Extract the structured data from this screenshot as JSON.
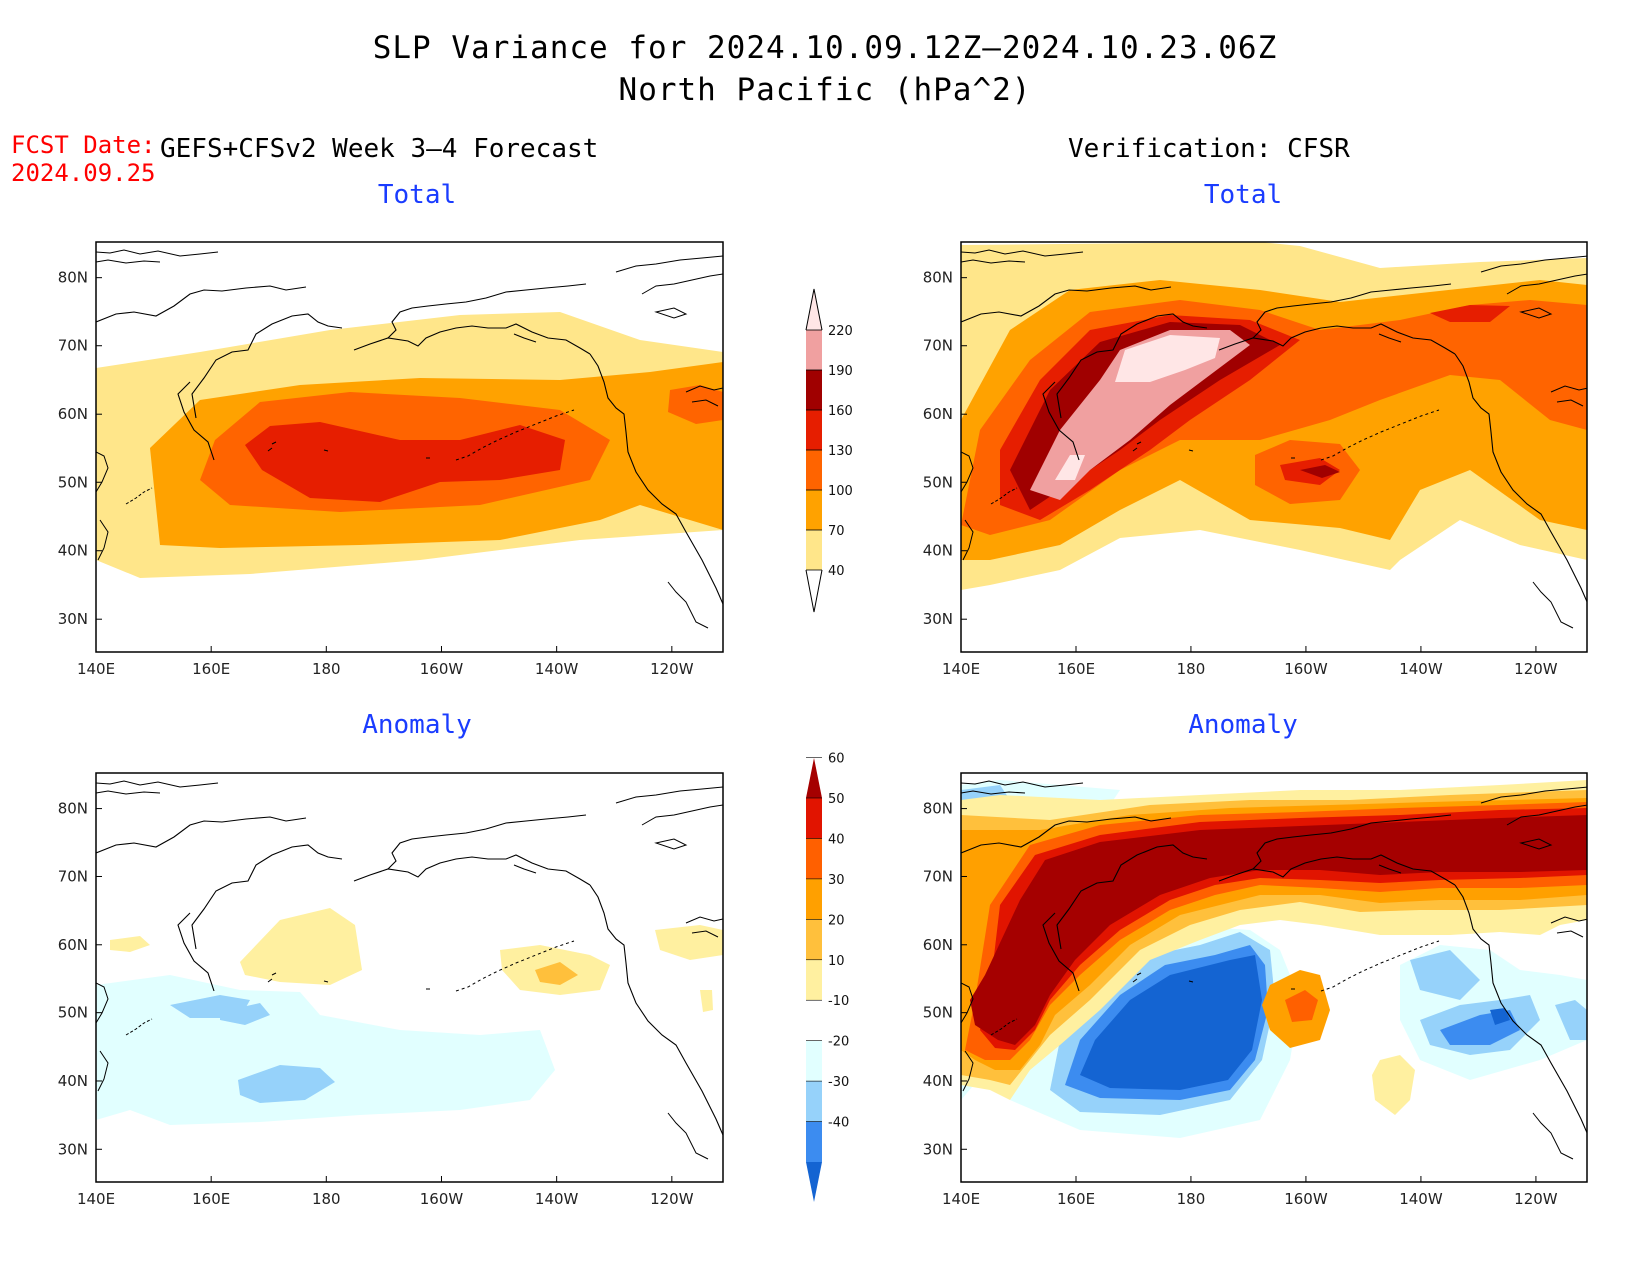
{
  "header": {
    "title_line1": "SLP Variance for 2024.10.09.12Z–2024.10.23.06Z",
    "title_line2": "North Pacific (hPa^2)",
    "fcst_label": "FCST Date:",
    "fcst_date": "2024.09.25",
    "left_heading": "GEFS+CFSv2 Week 3–4 Forecast",
    "right_heading": "Verification: CFSR"
  },
  "panels": {
    "top_left_title": "Total",
    "top_right_title": "Total",
    "bottom_left_title": "Anomaly",
    "bottom_right_title": "Anomaly"
  },
  "axes": {
    "lon_labels": [
      "140E",
      "160E",
      "180",
      "160W",
      "140W",
      "120W"
    ],
    "lat_labels": [
      "80N",
      "70N",
      "60N",
      "50N",
      "40N",
      "30N"
    ]
  },
  "colorbars": {
    "total": {
      "levels": [
        "40",
        "70",
        "100",
        "130",
        "160",
        "190",
        "220"
      ],
      "colors": [
        "#ffe68a",
        "#ffa200",
        "#ff6400",
        "#e61e00",
        "#a00000",
        "#f0a0a0",
        "#ffe6e6"
      ]
    },
    "anomaly": {
      "levels": [
        "-40",
        "-30",
        "-20",
        "-10",
        "10",
        "20",
        "30",
        "40",
        "50",
        "60"
      ],
      "colors": [
        "#1464d2",
        "#3c8cf0",
        "#96d2fa",
        "#e1ffff",
        "#ffffff",
        "#fff0a0",
        "#ffc03c",
        "#ffa000",
        "#ff6000",
        "#e11400",
        "#a50000"
      ]
    }
  }
}
